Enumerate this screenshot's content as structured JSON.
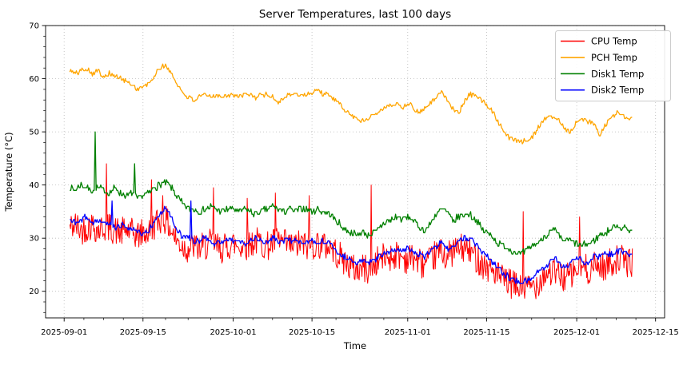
{
  "chart_data": {
    "type": "line",
    "title": "Server Temperatures, last 100 days",
    "xlabel": "Time",
    "ylabel": "Temperature (°C)",
    "ylim": [
      15,
      70
    ],
    "yticks": [
      20,
      30,
      40,
      50,
      60,
      70
    ],
    "y_minor_step": 2,
    "xticks": [
      "2025-09-01",
      "2025-09-15",
      "2025-10-01",
      "2025-10-15",
      "2025-11-01",
      "2025-11-15",
      "2025-12-01",
      "2025-12-15"
    ],
    "xlim_days": [
      -3.3,
      106.6
    ],
    "grid": true,
    "grid_color": "#b8b8b8",
    "legend_position": "upper right",
    "background": "#ffffff",
    "data_start_date": "2025-09-02",
    "series": [
      {
        "name": "CPU Temp",
        "color": "#ff0000",
        "seed": 42,
        "samples_per_day": 8,
        "noise": 2.8,
        "quantize": 0,
        "start_day": 1,
        "values": [
          32,
          32.5,
          31.5,
          32,
          32.5,
          31.5,
          32,
          32,
          31.5,
          31,
          31.5,
          31,
          30.5,
          31,
          31,
          32.5,
          33.5,
          33.5,
          31.5,
          29.5,
          28.5,
          28,
          28.5,
          28,
          28.5,
          29,
          28.5,
          28,
          28.5,
          29,
          28.5,
          28.5,
          29,
          29.5,
          29,
          28.5,
          29,
          29.5,
          29,
          28.5,
          28.5,
          29,
          28.5,
          28.5,
          29,
          28.5,
          28.5,
          27.5,
          26.5,
          25.5,
          24.5,
          24,
          24.5,
          24,
          25,
          26,
          26.5,
          26.5,
          27,
          26.5,
          26,
          26.5,
          25.5,
          25,
          25.5,
          27,
          27.5,
          26.5,
          27.5,
          28,
          28,
          27.5,
          26.5,
          25.5,
          24.5,
          24,
          23,
          22,
          21.5,
          21,
          20.5,
          20.5,
          21,
          21.5,
          23,
          23.5,
          23.5,
          23,
          22.5,
          23,
          24,
          24.5,
          24,
          24.5,
          25,
          24.5,
          25.5,
          26,
          26,
          25.5
        ],
        "spikes": [
          {
            "day": 7,
            "value": 44
          },
          {
            "day": 15,
            "value": 41
          },
          {
            "day": 17,
            "value": 38
          },
          {
            "day": 26,
            "value": 39.5
          },
          {
            "day": 32,
            "value": 37.5
          },
          {
            "day": 37,
            "value": 38.5
          },
          {
            "day": 43,
            "value": 38
          },
          {
            "day": 54,
            "value": 40
          },
          {
            "day": 81,
            "value": 35
          },
          {
            "day": 91,
            "value": 34
          }
        ]
      },
      {
        "name": "PCH Temp",
        "color": "#ffa500",
        "seed": 101,
        "samples_per_day": 6,
        "noise": 0.45,
        "quantize": 0.25,
        "start_day": 1,
        "values": [
          61.5,
          61,
          61.5,
          62,
          61,
          61.5,
          60.5,
          61,
          60.5,
          60,
          59.5,
          59,
          58,
          58.5,
          59,
          60.5,
          62,
          62.5,
          61,
          59,
          57.5,
          56.5,
          56,
          56.5,
          57,
          56.5,
          57,
          56.5,
          57,
          57,
          56.5,
          57,
          57,
          56.5,
          57,
          57,
          56.5,
          55.5,
          56.5,
          57,
          57,
          57,
          57,
          57.5,
          58,
          57,
          57,
          56,
          55,
          54,
          53,
          52.5,
          52,
          52.5,
          53.5,
          54,
          54.5,
          55,
          55.5,
          54.5,
          55.5,
          54.5,
          53.5,
          54.5,
          55.5,
          56.5,
          57.5,
          56,
          54.5,
          53.5,
          55.5,
          57,
          57,
          56,
          55,
          54,
          52,
          50.5,
          49,
          48.5,
          48,
          48.5,
          49,
          50.5,
          52,
          53,
          53,
          52,
          50.5,
          50,
          52,
          52.5,
          52,
          51.5,
          49.5,
          51,
          52.5,
          53.5,
          53.5,
          52.5
        ],
        "spikes": []
      },
      {
        "name": "Disk1 Temp",
        "color": "#008000",
        "seed": 7,
        "samples_per_day": 6,
        "noise": 0.6,
        "quantize": 0.5,
        "start_day": 1,
        "values": [
          39.5,
          39,
          40,
          39.5,
          39,
          39.5,
          39,
          38.5,
          39.5,
          38.5,
          38,
          38.5,
          37.5,
          38,
          38.5,
          39.5,
          40,
          40.5,
          39.5,
          38,
          36.5,
          35.5,
          35.5,
          35,
          35.5,
          36,
          35.5,
          35,
          35.5,
          35.5,
          35,
          35.5,
          35,
          34.5,
          35,
          35.5,
          36,
          35.5,
          35,
          35.5,
          35,
          35.5,
          35.5,
          35,
          35.5,
          35,
          34.5,
          33.5,
          32.5,
          31.5,
          31,
          30.5,
          31,
          30.5,
          31,
          32,
          33,
          33.5,
          34,
          33.5,
          34,
          33.5,
          32,
          31.5,
          32.5,
          34.5,
          35.5,
          35,
          33,
          34,
          34.5,
          34.5,
          33.5,
          32,
          31,
          30.5,
          29,
          28.5,
          28,
          27.5,
          27,
          27.5,
          28.5,
          29,
          30,
          31,
          31.5,
          30,
          29.5,
          29.5,
          29,
          28.5,
          29,
          29.5,
          30.5,
          31,
          31.5,
          32.5,
          32,
          31.5
        ],
        "spikes": [
          {
            "day": 5,
            "value": 50
          },
          {
            "day": 12,
            "value": 44
          }
        ]
      },
      {
        "name": "Disk2 Temp",
        "color": "#0000ff",
        "seed": 2025,
        "samples_per_day": 6,
        "noise": 0.5,
        "quantize": 0.5,
        "start_day": 1,
        "values": [
          33.5,
          33,
          33.5,
          34,
          33,
          33.5,
          33,
          32.5,
          32,
          32.5,
          32,
          31.5,
          31,
          31,
          31.5,
          33,
          34.5,
          35.5,
          34,
          31.5,
          30.5,
          30,
          29.5,
          29.5,
          30,
          29.5,
          29,
          29.5,
          30,
          29.5,
          29.5,
          29,
          29.5,
          30,
          29.5,
          29.5,
          30,
          29.5,
          29.5,
          29.5,
          29.5,
          29,
          29.5,
          29.5,
          29,
          29.5,
          29,
          28,
          27,
          26.5,
          26,
          25.5,
          26,
          25.5,
          26,
          26.5,
          27,
          27.5,
          28,
          27.5,
          28,
          27.5,
          27,
          26.5,
          27.5,
          28.5,
          29.5,
          28,
          28.5,
          29.5,
          30,
          30,
          29,
          27.5,
          26.5,
          25.5,
          24.5,
          23.5,
          22.5,
          22,
          21.8,
          22,
          22.5,
          23.5,
          24.5,
          25,
          26.5,
          25,
          24.5,
          25.5,
          26.5,
          26,
          25,
          26.5,
          26.5,
          27,
          27,
          27.5,
          27.5,
          27
        ],
        "spikes": [
          {
            "day": 8,
            "value": 37
          },
          {
            "day": 22,
            "value": 37
          }
        ]
      }
    ]
  }
}
